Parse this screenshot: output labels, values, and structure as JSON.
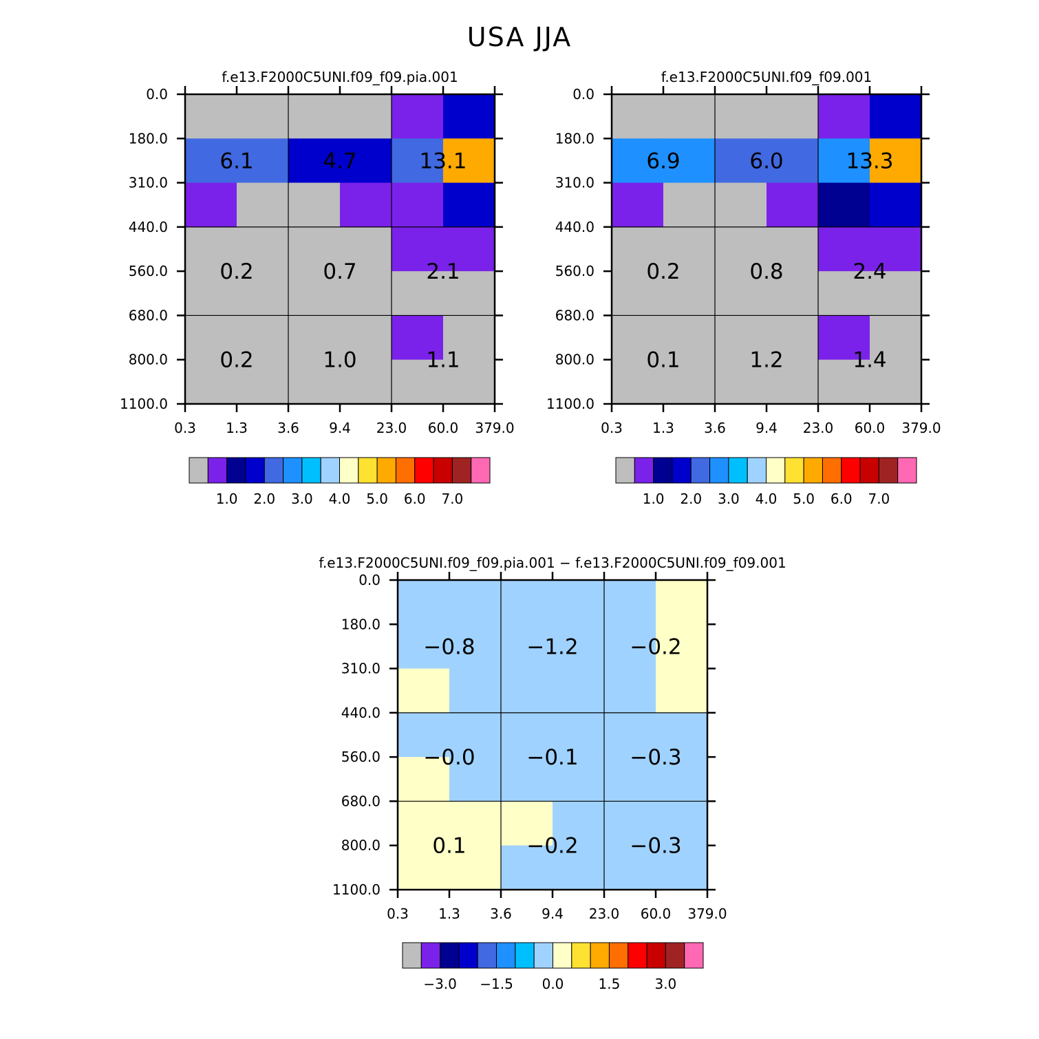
{
  "title": "USA JJA",
  "colors": {
    "palette": [
      "#bebebe",
      "#7b22ea",
      "#000091",
      "#0000cd",
      "#4169e1",
      "#1e90ff",
      "#00bfff",
      "#a0d2ff",
      "#ffffc8",
      "#ffe132",
      "#ffaa00",
      "#ff6e00",
      "#ff0000",
      "#c80000",
      "#a02323",
      "#ff69b4"
    ],
    "frame": "#000000"
  },
  "chart_data": [
    {
      "type": "heatmap",
      "title": "f.e13.F2000C5UNI.f09_f09.pia.001",
      "x_tick_labels": [
        "0.3",
        "1.3",
        "3.6",
        "9.4",
        "23.0",
        "60.0",
        "379.0"
      ],
      "y_tick_labels": [
        "0.0",
        "180.0",
        "310.0",
        "440.0",
        "560.0",
        "680.0",
        "800.0",
        "1100.0"
      ],
      "cell_color_index": [
        [
          0,
          0,
          0,
          0,
          1,
          3
        ],
        [
          4,
          4,
          3,
          3,
          4,
          10
        ],
        [
          1,
          0,
          0,
          1,
          1,
          3
        ],
        [
          0,
          0,
          0,
          0,
          1,
          1
        ],
        [
          0,
          0,
          0,
          0,
          0,
          0
        ],
        [
          0,
          0,
          0,
          0,
          1,
          0
        ],
        [
          0,
          0,
          0,
          0,
          0,
          0
        ]
      ],
      "cell_value_labels": [
        [
          "6.1",
          "4.7",
          "13.1"
        ],
        [
          "0.2",
          "0.7",
          "2.1"
        ],
        [
          "0.2",
          "1.0",
          "1.1"
        ]
      ],
      "colorbar_labels": [
        "1.0",
        "2.0",
        "3.0",
        "4.0",
        "5.0",
        "6.0",
        "7.0"
      ]
    },
    {
      "type": "heatmap",
      "title": "f.e13.F2000C5UNI.f09_f09.001",
      "x_tick_labels": [
        "0.3",
        "1.3",
        "3.6",
        "9.4",
        "23.0",
        "60.0",
        "379.0"
      ],
      "y_tick_labels": [
        "0.0",
        "180.0",
        "310.0",
        "440.0",
        "560.0",
        "680.0",
        "800.0",
        "1100.0"
      ],
      "cell_color_index": [
        [
          0,
          0,
          0,
          0,
          1,
          3
        ],
        [
          5,
          5,
          4,
          4,
          5,
          10
        ],
        [
          1,
          0,
          0,
          1,
          2,
          3
        ],
        [
          0,
          0,
          0,
          0,
          1,
          1
        ],
        [
          0,
          0,
          0,
          0,
          0,
          0
        ],
        [
          0,
          0,
          0,
          0,
          1,
          0
        ],
        [
          0,
          0,
          0,
          0,
          0,
          0
        ]
      ],
      "cell_value_labels": [
        [
          "6.9",
          "6.0",
          "13.3"
        ],
        [
          "0.2",
          "0.8",
          "2.4"
        ],
        [
          "0.1",
          "1.2",
          "1.4"
        ]
      ],
      "colorbar_labels": [
        "1.0",
        "2.0",
        "3.0",
        "4.0",
        "5.0",
        "6.0",
        "7.0"
      ]
    },
    {
      "type": "heatmap",
      "title": "f.e13.F2000C5UNI.f09_f09.pia.001 − f.e13.F2000C5UNI.f09_f09.001",
      "x_tick_labels": [
        "0.3",
        "1.3",
        "3.6",
        "9.4",
        "23.0",
        "60.0",
        "379.0"
      ],
      "y_tick_labels": [
        "0.0",
        "180.0",
        "310.0",
        "440.0",
        "560.0",
        "680.0",
        "800.0",
        "1100.0"
      ],
      "cell_color_index": [
        [
          7,
          7,
          7,
          7,
          7,
          8
        ],
        [
          7,
          7,
          7,
          7,
          7,
          8
        ],
        [
          8,
          7,
          7,
          7,
          7,
          8
        ],
        [
          7,
          7,
          7,
          7,
          7,
          7
        ],
        [
          8,
          7,
          7,
          7,
          7,
          7
        ],
        [
          8,
          8,
          8,
          7,
          7,
          7
        ],
        [
          8,
          8,
          7,
          7,
          7,
          7
        ]
      ],
      "cell_value_labels": [
        [
          "−0.8",
          "−1.2",
          "−0.2"
        ],
        [
          "−0.0",
          "−0.1",
          "−0.3"
        ],
        [
          "0.1",
          "−0.2",
          "−0.3"
        ]
      ],
      "colorbar_labels": [
        "−3.0",
        "−1.5",
        "0.0",
        "1.5",
        "3.0"
      ]
    }
  ]
}
